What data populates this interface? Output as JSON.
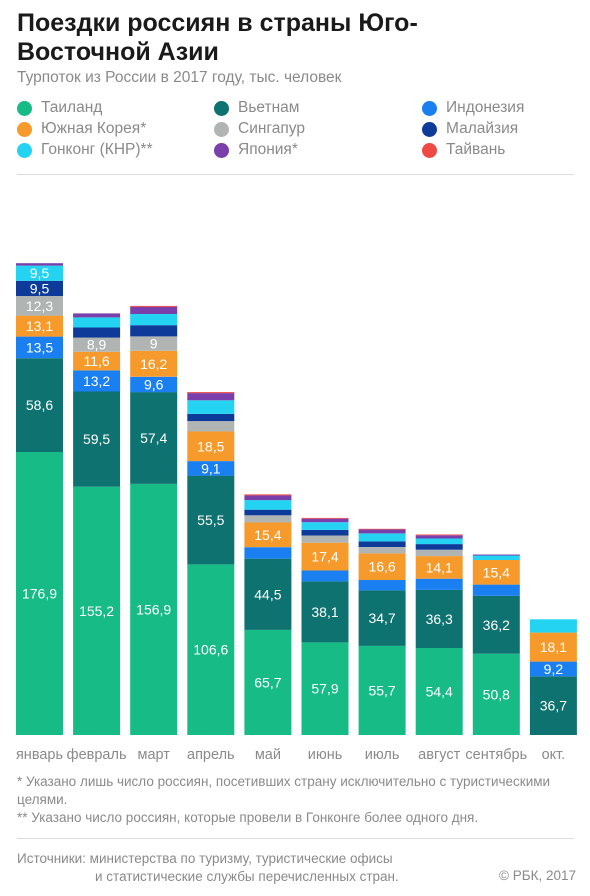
{
  "header": {
    "title": "Поездки россиян в страны Юго-Восточной Азии",
    "subtitle": "Турпоток из России в 2017 году, тыс. человек"
  },
  "notes": [
    "* Указано лишь число россиян, посетивших страну исключительно с туристическими целями.",
    "** Указано число россиян, которые провели в Гонконге более одного дня."
  ],
  "footer": {
    "sources_line1": "Источники: министерства по туризму, туристические офисы",
    "sources_line2": "и статистические службы перечисленных стран.",
    "copyright": "© РБК, 2017"
  },
  "chart_data": {
    "type": "bar",
    "stacked": true,
    "categories": [
      "январь",
      "февраль",
      "март",
      "апрель",
      "май",
      "июнь",
      "июль",
      "август",
      "сентябрь",
      "окт."
    ],
    "series": [
      {
        "name": "Таиланд",
        "color": "#17bb86",
        "values": [
          176.9,
          155.2,
          156.9,
          106.6,
          65.7,
          57.9,
          55.7,
          54.4,
          50.8,
          null
        ]
      },
      {
        "name": "Вьетнам",
        "color": "#0e7270",
        "values": [
          58.6,
          59.5,
          57.4,
          55.5,
          44.5,
          38.1,
          34.7,
          36.3,
          36.2,
          36.7
        ]
      },
      {
        "name": "Индонезия",
        "color": "#1a7ff0",
        "values": [
          13.5,
          13.2,
          9.6,
          9.1,
          7.2,
          6.8,
          6.5,
          7.0,
          7.0,
          9.2
        ]
      },
      {
        "name": "Южная Корея*",
        "color": "#f79a2c",
        "values": [
          13.1,
          11.6,
          16.2,
          18.5,
          15.4,
          17.4,
          16.6,
          14.1,
          15.4,
          18.1
        ]
      },
      {
        "name": "Сингапур",
        "color": "#b0b5b3",
        "values": [
          12.3,
          8.9,
          9.0,
          6.5,
          4.5,
          4.5,
          4.0,
          4.0,
          null,
          null
        ]
      },
      {
        "name": "Малайзия",
        "color": "#0e3b9a",
        "values": [
          9.5,
          6.3,
          7.0,
          4.5,
          3.5,
          3.5,
          3.5,
          3.5,
          null,
          null
        ]
      },
      {
        "name": "Гонконг (КНР)**",
        "color": "#24d3f2",
        "values": [
          9.5,
          6.3,
          7.0,
          8.5,
          6.0,
          4.8,
          5.0,
          3.5,
          2.8,
          8.3
        ]
      },
      {
        "name": "Япония*",
        "color": "#7a3fab",
        "values": [
          1.5,
          2.5,
          4.5,
          4.5,
          3.0,
          2.2,
          2.5,
          2.0,
          0.6,
          null
        ]
      },
      {
        "name": "Тайвань",
        "color": "#ee4a43",
        "values": [
          null,
          null,
          0.6,
          0.6,
          0.6,
          0.5,
          0.4,
          0.5,
          null,
          null
        ]
      }
    ],
    "data_labels": [
      [
        "176,9",
        "58,6",
        "13,5",
        "13,1",
        "12,3",
        "9,5",
        "9,5",
        "",
        ""
      ],
      [
        "155,2",
        "59,5",
        "13,2",
        "11,6",
        "8,9",
        "",
        "",
        "",
        ""
      ],
      [
        "156,9",
        "57,4",
        "9,6",
        "16,2",
        "9",
        "",
        "",
        "",
        ""
      ],
      [
        "106,6",
        "55,5",
        "9,1",
        "18,5",
        "",
        "",
        "",
        "",
        ""
      ],
      [
        "65,7",
        "44,5",
        "",
        "15,4",
        "",
        "",
        "",
        "",
        ""
      ],
      [
        "57,9",
        "38,1",
        "",
        "17,4",
        "",
        "",
        "",
        "",
        ""
      ],
      [
        "55,7",
        "34,7",
        "",
        "16,6",
        "",
        "",
        "",
        "",
        ""
      ],
      [
        "54,4",
        "36,3",
        "",
        "14,1",
        "",
        "",
        "",
        "",
        ""
      ],
      [
        "50,8",
        "36,2",
        "",
        "15,4",
        "",
        "",
        "",
        "",
        ""
      ],
      [
        "",
        "36,7",
        "9,2",
        "18,1",
        "",
        "",
        "",
        "",
        ""
      ]
    ],
    "legend_position": "top",
    "grid": false,
    "ylim": [
      0,
      320
    ]
  }
}
